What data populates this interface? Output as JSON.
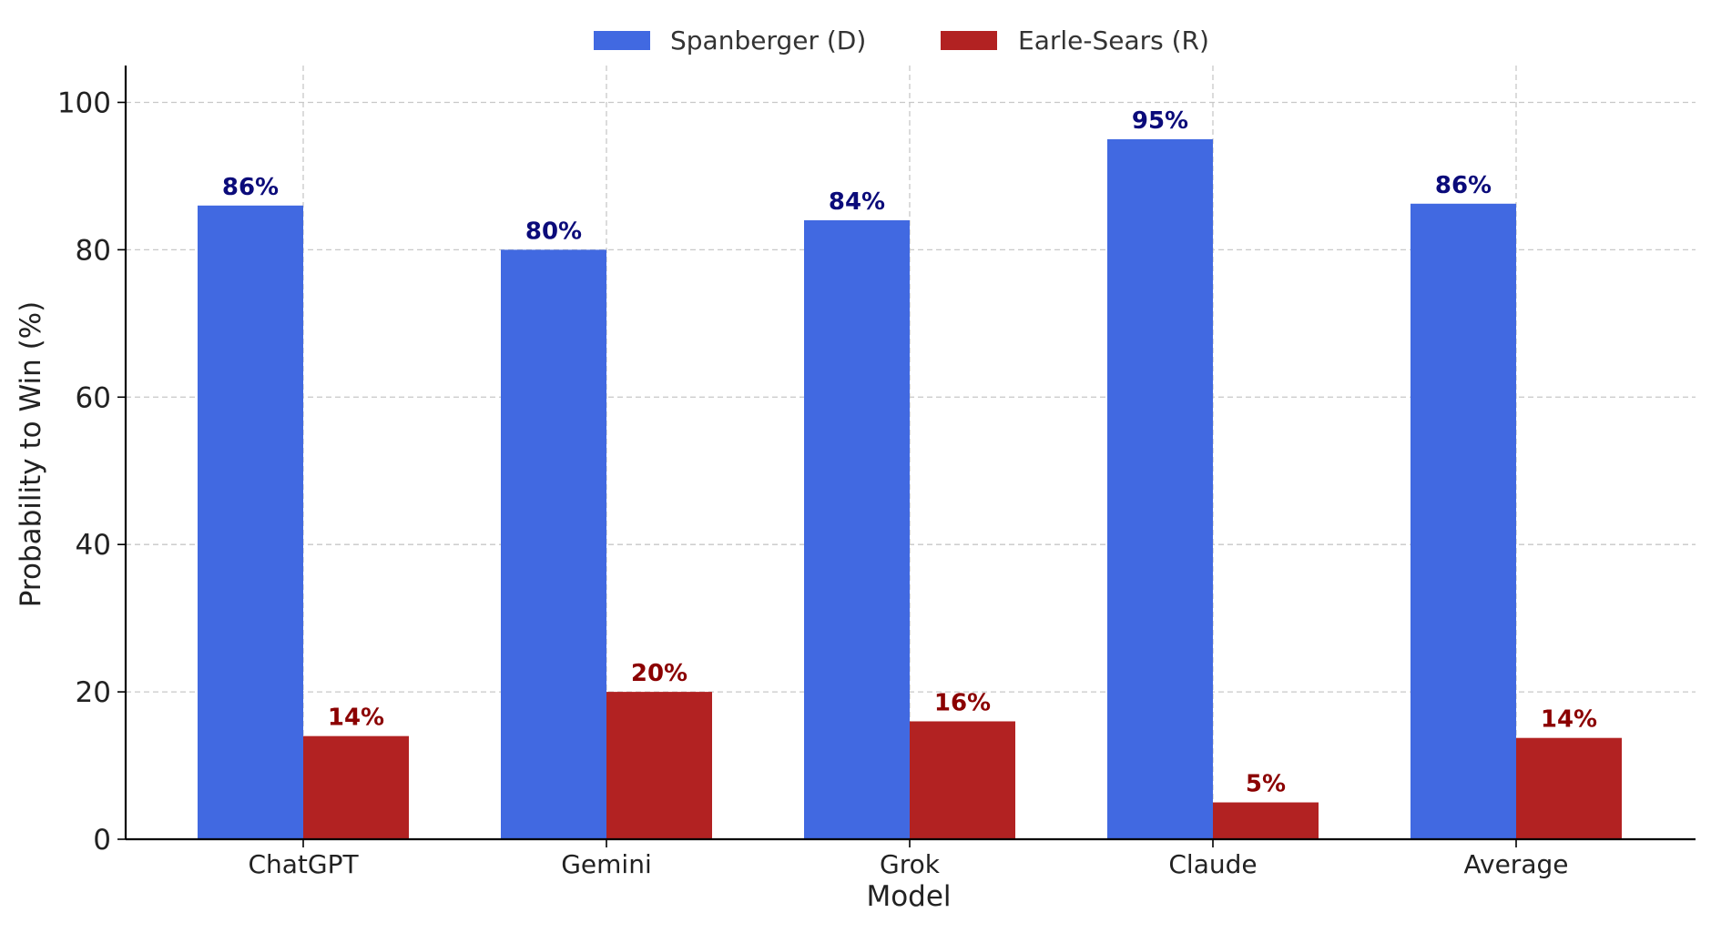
{
  "chart_data": {
    "type": "bar",
    "title": "",
    "xlabel": "Model",
    "ylabel": "Probability to Win (%)",
    "ylim": [
      0,
      105
    ],
    "yticks": [
      0,
      20,
      40,
      60,
      80,
      100
    ],
    "grid": true,
    "legend_position": "top-center",
    "categories": [
      "ChatGPT",
      "Gemini",
      "Grok",
      "Claude",
      "Average"
    ],
    "series": [
      {
        "name": "Spanberger (D)",
        "color": "#4169e1",
        "label_color": "#0b0b7a",
        "values": [
          86,
          80,
          84,
          95,
          86.25
        ],
        "labels": [
          "86%",
          "80%",
          "84%",
          "95%",
          "86%"
        ]
      },
      {
        "name": "Earle-Sears (R)",
        "color": "#b22222",
        "label_color": "#8b0000",
        "values": [
          14,
          20,
          16,
          5,
          13.75
        ],
        "labels": [
          "14%",
          "20%",
          "16%",
          "5%",
          "14%"
        ]
      }
    ]
  }
}
